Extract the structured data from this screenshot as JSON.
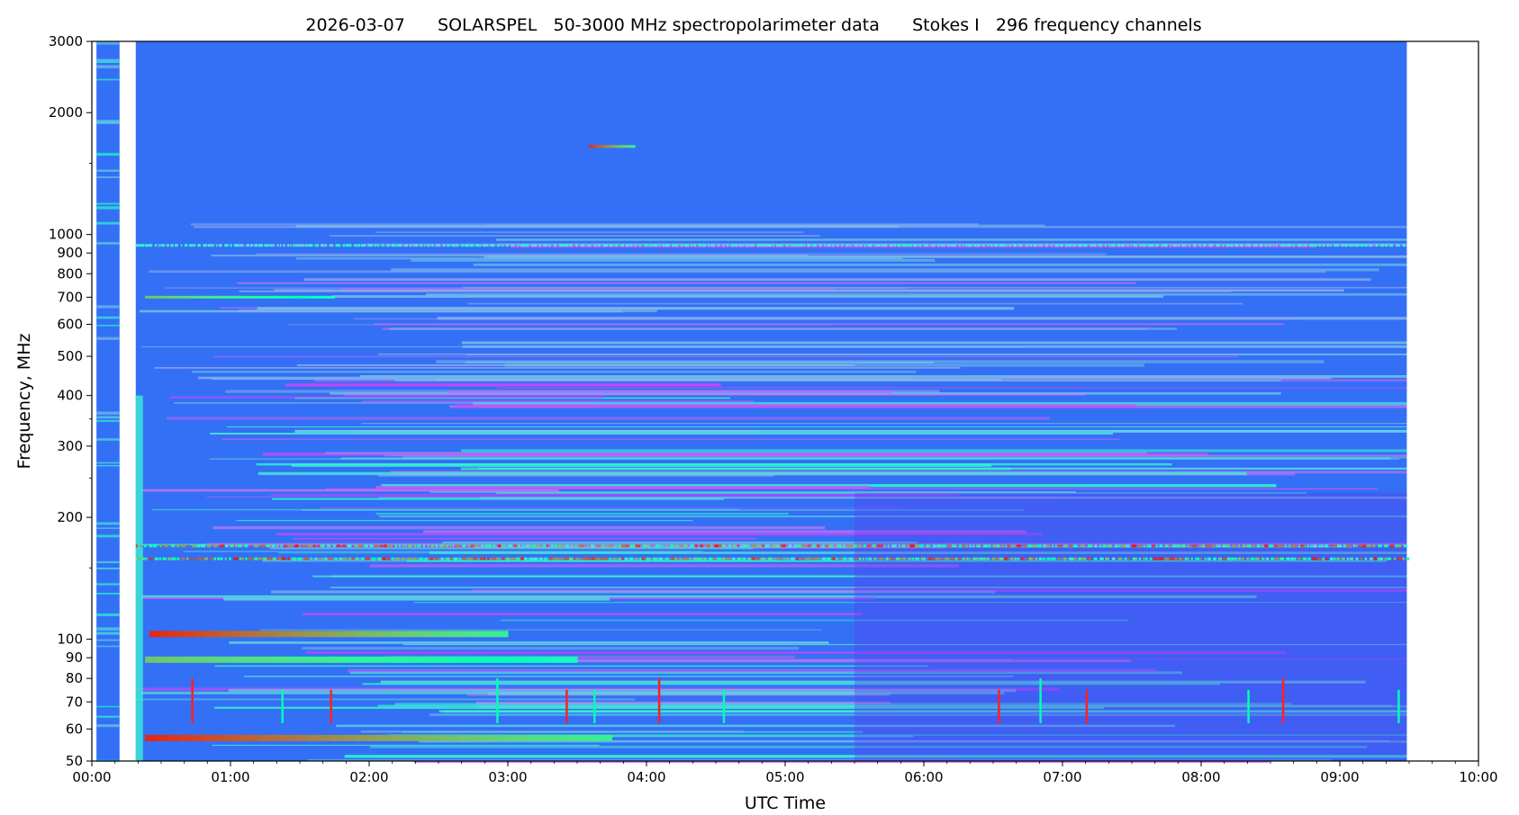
{
  "chart_data": {
    "type": "heatmap",
    "title": "2026-03-07      SOLARSPEL   50-3000 MHz spectropolarimeter data      Stokes I   296 frequency channels",
    "xlabel": "UTC Time",
    "ylabel": "Frequency, MHz",
    "x_scale": "time",
    "y_scale": "log",
    "xlim": [
      "00:00",
      "10:00"
    ],
    "ylim": [
      50,
      3000
    ],
    "x_ticks": [
      "00:00",
      "01:00",
      "02:00",
      "03:00",
      "04:00",
      "05:00",
      "06:00",
      "07:00",
      "08:00",
      "09:00",
      "10:00"
    ],
    "y_ticks": [
      50,
      60,
      70,
      80,
      90,
      100,
      200,
      300,
      400,
      500,
      600,
      700,
      800,
      900,
      1000,
      2000,
      3000
    ],
    "colormap": "rainbow",
    "background_color": "#3370f5",
    "data_coverage": [
      {
        "start": "00:02",
        "end": "00:12"
      },
      {
        "start": "00:19",
        "end": "09:29"
      }
    ],
    "bright_bands": [
      {
        "freq_mhz": 57,
        "start": "00:23",
        "end": "03:45",
        "level": "high"
      },
      {
        "freq_mhz": 89,
        "start": "00:23",
        "end": "03:30",
        "level": "medium-high"
      },
      {
        "freq_mhz": 103,
        "start": "00:25",
        "end": "03:00",
        "level": "high"
      },
      {
        "freq_mhz": 158,
        "start": "00:19",
        "end": "09:29",
        "level": "intermittent-high"
      },
      {
        "freq_mhz": 170,
        "start": "00:19",
        "end": "09:29",
        "level": "intermittent-high"
      },
      {
        "freq_mhz": 700,
        "start": "00:23",
        "end": "01:45",
        "level": "medium-high"
      },
      {
        "freq_mhz": 1650,
        "start": "03:35",
        "end": "03:55",
        "level": "high"
      },
      {
        "freq_mhz": 940,
        "start": "00:19",
        "end": "09:29",
        "level": "low-intermittent"
      }
    ],
    "grid": false,
    "legend": false
  }
}
